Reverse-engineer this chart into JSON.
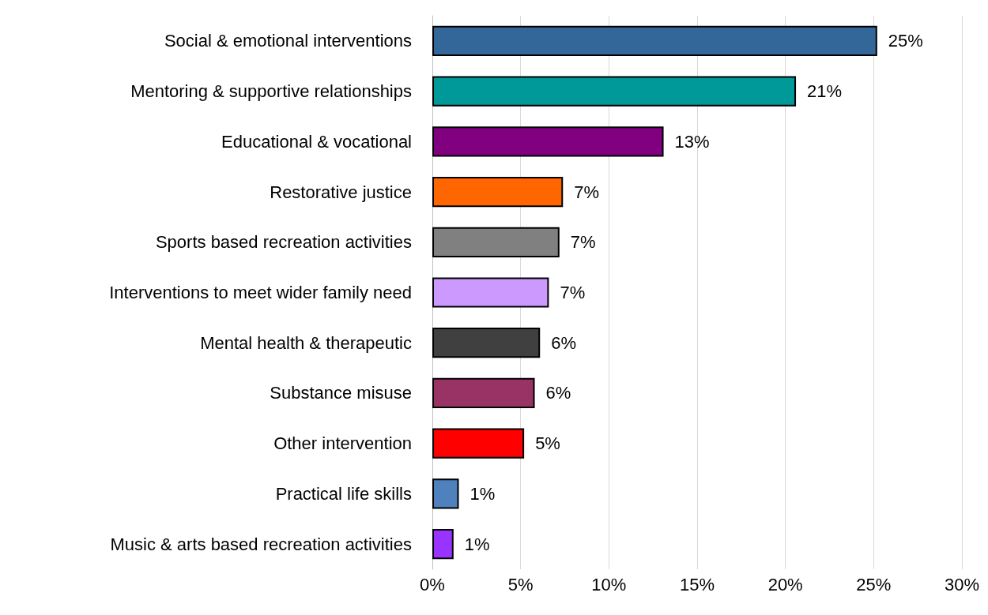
{
  "chart_data": {
    "type": "bar",
    "orientation": "horizontal",
    "categories": [
      "Social & emotional interventions",
      "Mentoring & supportive relationships",
      "Educational & vocational",
      "Restorative justice",
      "Sports based recreation activities",
      "Interventions to meet wider family need",
      "Mental health & therapeutic",
      "Substance misuse",
      "Other intervention",
      "Practical life skills",
      "Music & arts based recreation activities"
    ],
    "values": [
      25.2,
      20.6,
      13.1,
      7.4,
      7.2,
      6.6,
      6.1,
      5.8,
      5.2,
      1.5,
      1.2
    ],
    "value_labels": [
      "25%",
      "21%",
      "13%",
      "7%",
      "7%",
      "7%",
      "6%",
      "6%",
      "5%",
      "1%",
      "1%"
    ],
    "colors": [
      "#336699",
      "#009999",
      "#800080",
      "#ff6600",
      "#808080",
      "#cc99ff",
      "#404040",
      "#993366",
      "#ff0000",
      "#4f81bd",
      "#9933ff"
    ],
    "xlim": [
      0,
      30
    ],
    "xticks": [
      {
        "value": 0,
        "label": "0%"
      },
      {
        "value": 5,
        "label": "5%"
      },
      {
        "value": 10,
        "label": "10%"
      },
      {
        "value": 15,
        "label": "15%"
      },
      {
        "value": 20,
        "label": "20%"
      },
      {
        "value": 25,
        "label": "25%"
      },
      {
        "value": 30,
        "label": "30%"
      }
    ],
    "grid": "x"
  }
}
